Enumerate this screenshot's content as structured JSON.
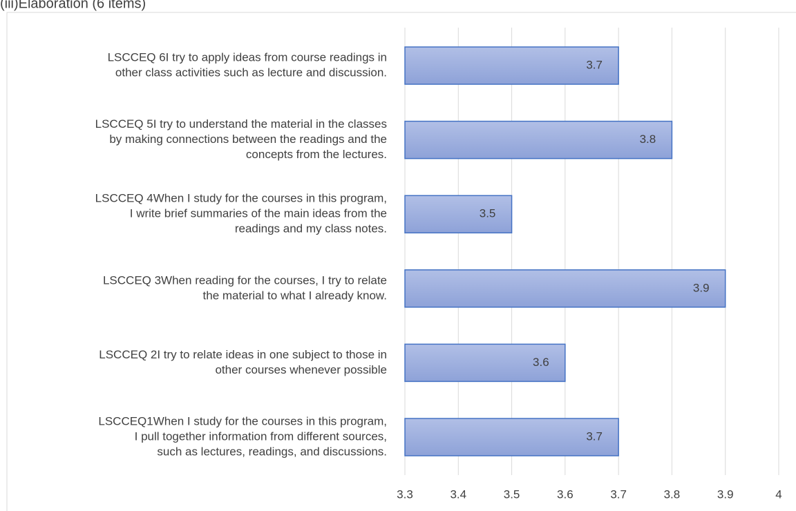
{
  "chart_data": {
    "type": "bar",
    "orientation": "horizontal",
    "title": "(iii)Elaboration (6 items)",
    "categories": [
      [
        "LSCCEQ 6I try to apply ideas from course readings in",
        "other class activities such as lecture and discussion."
      ],
      [
        "LSCCEQ 5I try to understand the material in the classes",
        "by making connections between the readings and the",
        "concepts from the lectures."
      ],
      [
        "LSCCEQ 4When I study for the courses in this program,",
        "I write brief summaries of the main ideas from the",
        "readings and my class notes."
      ],
      [
        "LSCCEQ 3When reading for the courses, I try to relate",
        "the material to what I already know."
      ],
      [
        "LSCCEQ 2I try to relate ideas in one subject to those in",
        "other courses whenever possible"
      ],
      [
        "LSCCEQ1When I study for the courses in this program,",
        "I pull together information from different sources,",
        "such as lectures, readings, and discussions."
      ]
    ],
    "values": [
      3.7,
      3.8,
      3.5,
      3.9,
      3.6,
      3.7
    ],
    "color": "#4472c4",
    "xlim": [
      3.3,
      4
    ],
    "xticks": [
      3.3,
      3.4,
      3.5,
      3.6,
      3.7,
      3.8,
      3.9,
      4
    ],
    "grid": true
  }
}
